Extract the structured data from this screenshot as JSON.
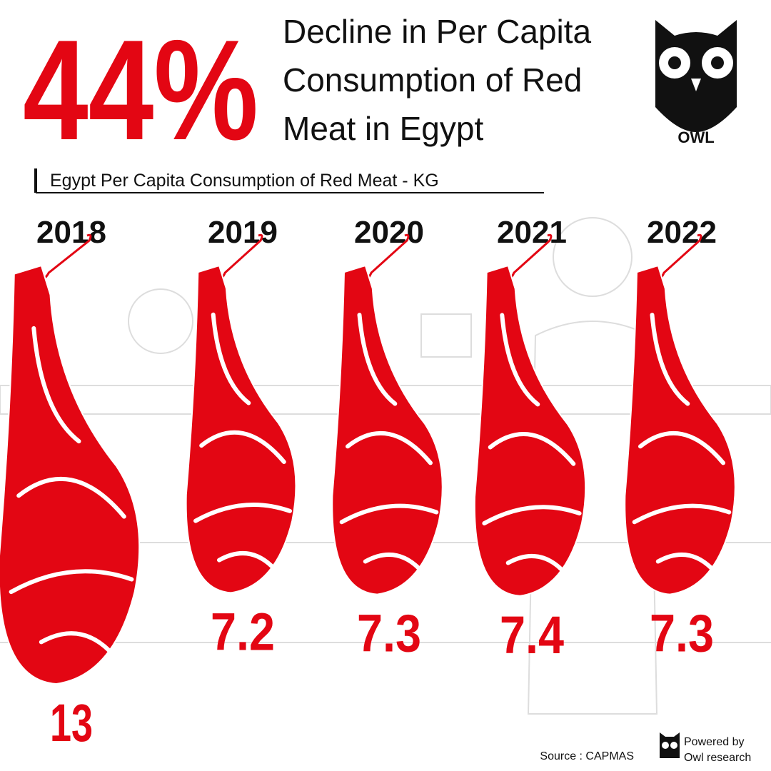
{
  "chart_data": {
    "type": "pictograph",
    "headline": "44%",
    "title": [
      "Decline in Per Capita",
      "Consumption of Red",
      "Meat in Egypt"
    ],
    "subtitle": "Egypt Per Capita Consumption of Red Meat - KG",
    "categories": [
      "2018",
      "2019",
      "2020",
      "2021",
      "2022"
    ],
    "values": [
      13,
      7.2,
      7.3,
      7.4,
      7.3
    ],
    "color": "#e30613",
    "logo": "OWL",
    "source": "Source : CAPMAS",
    "credit": [
      "Powered by",
      "Owl research"
    ]
  }
}
